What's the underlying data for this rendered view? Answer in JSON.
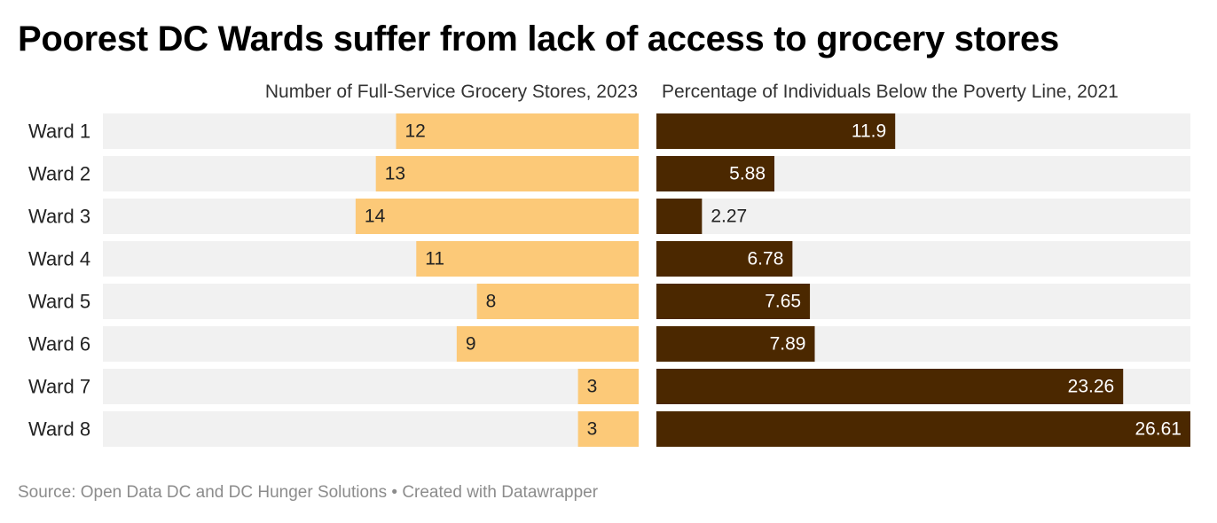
{
  "title": "Poorest DC Wards suffer from lack of access to grocery stores",
  "source_note": "Source: Open Data DC and DC Hunger Solutions • Created with Datawrapper",
  "colors": {
    "grocery_bar": "#fcc978",
    "poverty_bar": "#4b2800",
    "track": "#f1f1f1",
    "dark_text": "#222222",
    "light_text": "#ffffff"
  },
  "chart_data": [
    {
      "type": "bar",
      "orientation": "horizontal",
      "direction": "right-to-left",
      "title": "Number of Full-Service Grocery Stores, 2023",
      "categories": [
        "Ward 1",
        "Ward 2",
        "Ward 3",
        "Ward 4",
        "Ward 5",
        "Ward 6",
        "Ward 7",
        "Ward 8"
      ],
      "values": [
        12,
        13,
        14,
        11,
        8,
        9,
        3,
        3
      ],
      "value_labels": [
        "12",
        "13",
        "14",
        "11",
        "8",
        "9",
        "3",
        "3"
      ],
      "xlim": [
        0,
        26.5
      ]
    },
    {
      "type": "bar",
      "orientation": "horizontal",
      "direction": "left-to-right",
      "title": "Percentage of Individuals Below the Poverty Line, 2021",
      "categories": [
        "Ward 1",
        "Ward 2",
        "Ward 3",
        "Ward 4",
        "Ward 5",
        "Ward 6",
        "Ward 7",
        "Ward 8"
      ],
      "values": [
        11.9,
        5.88,
        2.27,
        6.78,
        7.65,
        7.89,
        23.26,
        26.61
      ],
      "value_labels": [
        "11.9",
        "5.88",
        "2.27",
        "6.78",
        "7.65",
        "7.89",
        "23.26",
        "26.61"
      ],
      "xlim": [
        0,
        26.61
      ]
    }
  ]
}
